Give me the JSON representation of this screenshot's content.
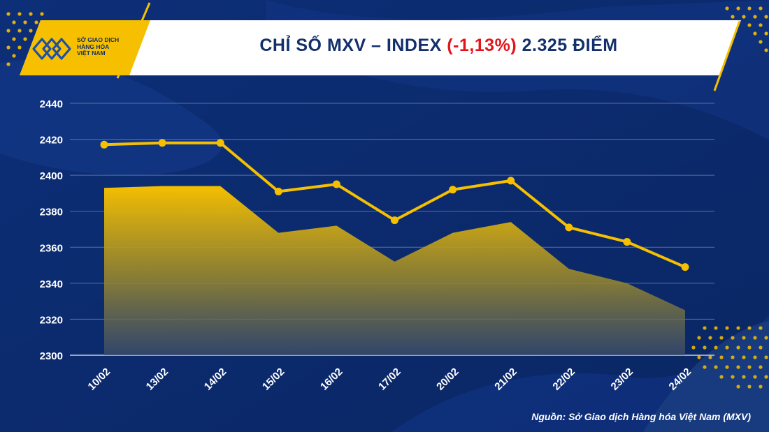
{
  "header": {
    "title_prefix": "CHỈ SỐ MXV – INDEX",
    "title_change": "(-1,13%)",
    "title_suffix": "2.325 ĐIỂM",
    "logo_lines": [
      "SỞ GIAO DỊCH",
      "HÀNG HÓA",
      "VIỆT NAM"
    ]
  },
  "source_text": "Nguồn: Sở Giao dịch Hàng hóa Việt Nam (MXV)",
  "colors": {
    "background": "#0b2a6c",
    "line": "#f6c000",
    "area_top": "#f4bf00",
    "change_red": "#e3141c",
    "title_navy": "#13306b"
  },
  "chart_data": {
    "type": "line",
    "categories": [
      "10/02",
      "13/02",
      "14/02",
      "15/02",
      "16/02",
      "17/02",
      "20/02",
      "21/02",
      "22/02",
      "23/02",
      "24/02"
    ],
    "series": [
      {
        "values": [
          2417,
          2418,
          2418,
          2391,
          2395,
          2375,
          2392,
          2397,
          2371,
          2363,
          2349
        ]
      }
    ],
    "area_values": [
      2393,
      2394,
      2394,
      2368,
      2372,
      2352,
      2368,
      2374,
      2348,
      2340,
      2325
    ],
    "y_ticks": [
      2300,
      2320,
      2340,
      2360,
      2380,
      2400,
      2420,
      2440
    ],
    "ylim": [
      2300,
      2440
    ],
    "grid": true
  }
}
